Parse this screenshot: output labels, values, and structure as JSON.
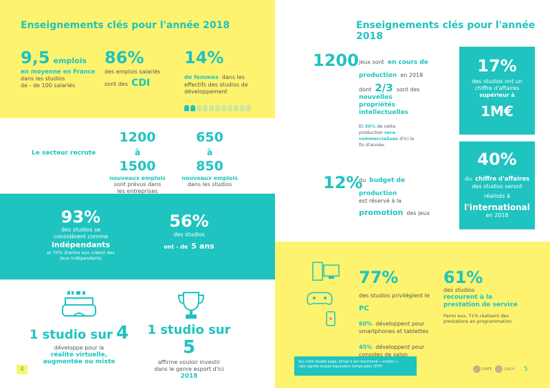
{
  "left": {
    "title": "Enseignements clés pour l'année 2018",
    "stat_jobs": {
      "number": "9,5",
      "unit": "emplois",
      "line1": "en moyenne en France",
      "line2": "dans les studios",
      "line3": "de - de 100 salariés"
    },
    "stat_cdi": {
      "number": "86%",
      "line1": "des emplois salariés",
      "line2": "sont des",
      "highlight": "CDI"
    },
    "stat_women": {
      "number": "14%",
      "highlight": "de femmes",
      "line1": "dans les",
      "line2": "effectifs des studios de",
      "line3": "développement"
    },
    "recrute_label": "Le secteur recrute",
    "recrute_a": {
      "n1": "1200",
      "a": "à",
      "n2": "1500",
      "bold": "nouveaux emplois",
      "line1": "sont prévus dans",
      "line2": "les entreprises"
    },
    "recrute_b": {
      "n1": "650",
      "a": "à",
      "n2": "850",
      "bold": "nouveaux emplois",
      "line1": "dans les studios"
    },
    "stat_indep": {
      "number": "93%",
      "line1": "des studios se",
      "line2": "considèrent comme",
      "highlight": "indépendants",
      "line3": "et 70% d'entre eux créent des",
      "line4": "jeux indépendants"
    },
    "stat_age": {
      "number": "56%",
      "line1": "des studios",
      "highlight_pre": "ont - de",
      "highlight": "5 ans"
    },
    "vr": {
      "headline_a": "1 studio sur",
      "headline_b": "4",
      "line1": "développe pour la",
      "highlight1": "réalité virtuelle,",
      "highlight2": "augmentée ou mixte"
    },
    "esport": {
      "headline_a": "1 studio sur",
      "headline_b": "5",
      "line1": "affirme vouloir investir",
      "line2": "dans le genre esport d'ici",
      "highlight": "2018"
    },
    "page_number": "4"
  },
  "right": {
    "title": "Enseignements clés pour l'année 2018",
    "prod": {
      "number": "1200",
      "line1": "jeux sont",
      "highlight1": "en cours de",
      "highlight2": "production",
      "line2": "en 2018"
    },
    "ip": {
      "pre": "dont",
      "number": "2/3",
      "post": "sont des",
      "h1": "nouvelles",
      "h2": "propriétés",
      "h3": "intellectuelles"
    },
    "comm": {
      "l1a": "Et",
      "l1b": "50%",
      "l1c": "de cette",
      "l2a": "production",
      "l2b": "sera",
      "l3": "commercialisée",
      "l3b": "d'ici la",
      "l4": "fin d'année."
    },
    "promo": {
      "number": "12%",
      "pre": "du",
      "h1": "budget de production",
      "line1": "est réservé à la",
      "h2": "promotion",
      "post": "des jeux"
    },
    "box1": {
      "number": "17%",
      "line1": "des studios ont un",
      "line2": "chiffre d'affaires",
      "bold": "supérieur à",
      "big": "1M€"
    },
    "box2": {
      "number": "40%",
      "pre": "du",
      "bold": "chiffre d'affaires",
      "line1": "des studios seront",
      "line2": "réalisés à",
      "big": "l'international",
      "line3": "en 2018"
    },
    "pc": {
      "number": "77%",
      "line1": "des studios privilégient le",
      "h": "PC",
      "a_pct": "60%",
      "a1": "développent pour",
      "a2": "smartphones et tablettes",
      "b_pct": "45%",
      "b1": "développent pour",
      "b2": "consoles de salon"
    },
    "presta": {
      "number": "61%",
      "line1": "des studios",
      "h1": "recourent à la",
      "h2": "prestation de service",
      "l1": "Parmi eux, 71% réalisent des",
      "l2": "prestations en programmation"
    },
    "footnote": {
      "l1": "Sur cette double page, lorsqu'il est mentionné « emploi »,",
      "l2": "cela signifie emploi équivalent temps plein (ETP)"
    },
    "logos": {
      "a": "IDATE",
      "b": "SNJV"
    },
    "page_number": "5"
  },
  "colors": {
    "teal": "#1fc3c0",
    "yellow": "#fdf36f"
  }
}
